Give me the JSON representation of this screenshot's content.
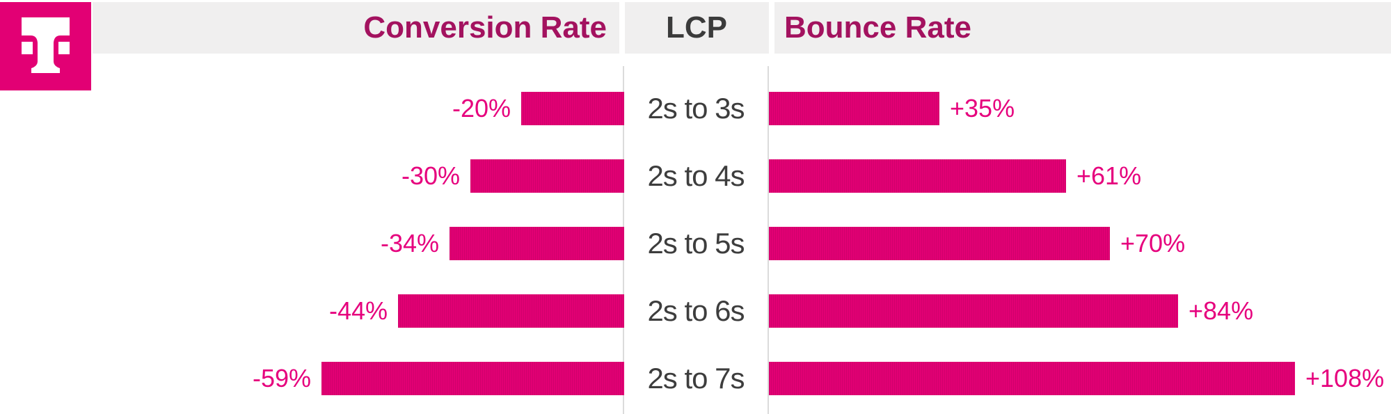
{
  "page": {
    "background": "#FFFFFF"
  },
  "brand": {
    "logo": "t-mobile-t-logo",
    "magenta": "#E20074"
  },
  "header": {
    "conversion_label": "Conversion Rate",
    "lcp_label": "LCP",
    "bounce_label": "Bounce Rate",
    "background": "#F0EFEF",
    "metric_text_color": "#A3125F",
    "lcp_text_color": "#3B3B3B"
  },
  "chart_data": {
    "type": "bar",
    "variant": "diverging-horizontal",
    "title": "",
    "center_axis_label": "LCP",
    "categories": [
      "2s to 3s",
      "2s to 4s",
      "2s to 5s",
      "2s to 6s",
      "2s to 7s"
    ],
    "series": [
      {
        "name": "Conversion Rate",
        "direction": "left",
        "labels": [
          "-20%",
          "-30%",
          "-34%",
          "-44%",
          "-59%"
        ],
        "values": [
          -20,
          -30,
          -34,
          -44,
          -59
        ]
      },
      {
        "name": "Bounce Rate",
        "direction": "right",
        "labels": [
          "+35%",
          "+61%",
          "+70%",
          "+84%",
          "+108%"
        ],
        "values": [
          35,
          61,
          70,
          84,
          108
        ]
      }
    ],
    "bar_color": "#E20074",
    "value_label_color": "#E6007D",
    "category_label_color": "#3D3D3D",
    "column_divider_color": "#DBDBDB",
    "grid": false,
    "legend_position": "top-header"
  }
}
